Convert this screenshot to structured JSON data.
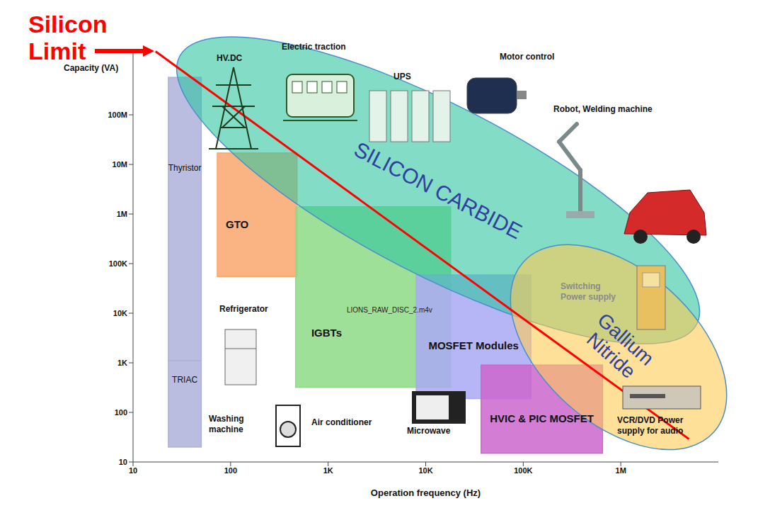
{
  "chart_data": {
    "type": "region",
    "x_label": "Operation frequency (Hz)",
    "y_label": "Capacity (VA)",
    "log": true,
    "grid": false,
    "xlim": [
      10,
      10000000
    ],
    "xticks": [
      10,
      100,
      {
        "value": 1000,
        "label": "1K"
      },
      {
        "value": 10000,
        "label": "10K"
      },
      {
        "value": 100000,
        "label": "100K"
      },
      {
        "value": 1000000,
        "label": "1M"
      }
    ],
    "ylim": [
      10,
      2000000000
    ],
    "yticks": [
      10,
      100,
      {
        "value": 1000,
        "label": "1K"
      },
      {
        "value": 10000,
        "label": "10K"
      },
      {
        "value": 100000,
        "label": "100K"
      },
      {
        "value": 1000000,
        "label": "1M"
      },
      {
        "value": 10000000,
        "label": "10M"
      },
      {
        "value": 100000000,
        "label": "100M"
      }
    ],
    "regions": [
      {
        "name": "Thyristor",
        "x": [
          23,
          50
        ],
        "y": [
          1100,
          570000000
        ],
        "color": "#aeb0da"
      },
      {
        "name": "TRIAC",
        "x": [
          23,
          50
        ],
        "y": [
          20,
          1100
        ],
        "color": "#aeb0da"
      },
      {
        "name": "GTO",
        "x": [
          73,
          480
        ],
        "y": [
          55000,
          17000000
        ],
        "color": "#f9a66c"
      },
      {
        "name": "IGBTs",
        "x": [
          464,
          18000
        ],
        "y": [
          320,
          1400000
        ],
        "color": "#8edb86"
      },
      {
        "name": "MOSFET Modules",
        "x": [
          8000,
          120000
        ],
        "y": [
          190,
          59000
        ],
        "color": "#a9a9f5"
      },
      {
        "name": "HVIC & PIC MOSFET",
        "x": [
          37000,
          650000
        ],
        "y": [
          15,
          900
        ],
        "color": "#cc66cc"
      }
    ],
    "zones": [
      {
        "name": "SILICON CARBIDE",
        "from": [
          30,
          1500000000
        ],
        "to": [
          6000000,
          6000
        ],
        "color": "#2ec4a0"
      },
      {
        "name": "Gallium Nitride",
        "from": [
          100000,
          107000
        ],
        "to": [
          9000000,
          40
        ],
        "color": "#ffcc55"
      }
    ],
    "limit_line": {
      "name": "Silicon Limit",
      "x": [
        17,
        5000000
      ],
      "y": [
        1900000000,
        29
      ],
      "color": "#ff0000"
    },
    "applications": [
      "HV.DC",
      "Electric traction",
      "UPS",
      "Motor control",
      "Robot, Welding machine",
      "Refrigerator",
      "Washing machine",
      "Air conditioner",
      "Microwave",
      "Switching Power supply",
      "VCR/DVD Power supply for audio"
    ],
    "annotations": [
      "LIONS_RAW_DISC_2.m4v"
    ]
  }
}
